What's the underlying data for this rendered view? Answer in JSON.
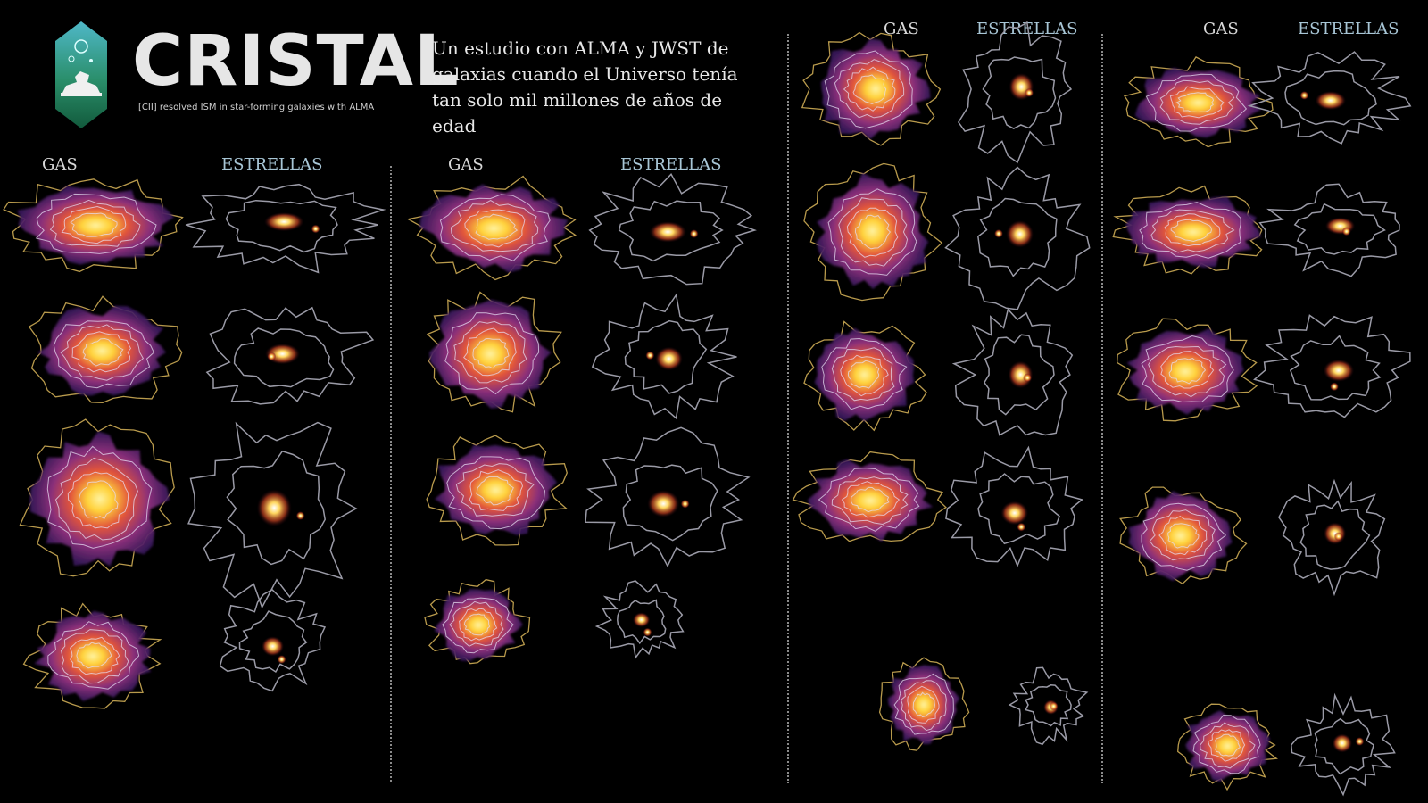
{
  "header": {
    "brand": "CRISTAL",
    "tagline": "[CII] resolved ISM in star-forming galaxies with ALMA",
    "subtitle": "Un estudio con ALMA y JWST de galaxias cuando el Universo tenía tan solo mil millones de años de edad"
  },
  "labels": {
    "gas": "GAS",
    "stars": "ESTRELLAS"
  },
  "colors": {
    "background": "#000000",
    "brand": "#e6e6e6",
    "logo_green": "#1f8a5e",
    "logo_teal": "#2aa6a0",
    "gas_core": "#ffd23a",
    "gas_mid": "#e2553a",
    "gas_outer": "#5a2a78",
    "contour_inner": "#e6dcf0",
    "contour_outer": "#b89a4c",
    "star_contour": "#9a9aa6"
  },
  "icons": [
    "telescope-icon",
    "galaxy-icon"
  ]
}
